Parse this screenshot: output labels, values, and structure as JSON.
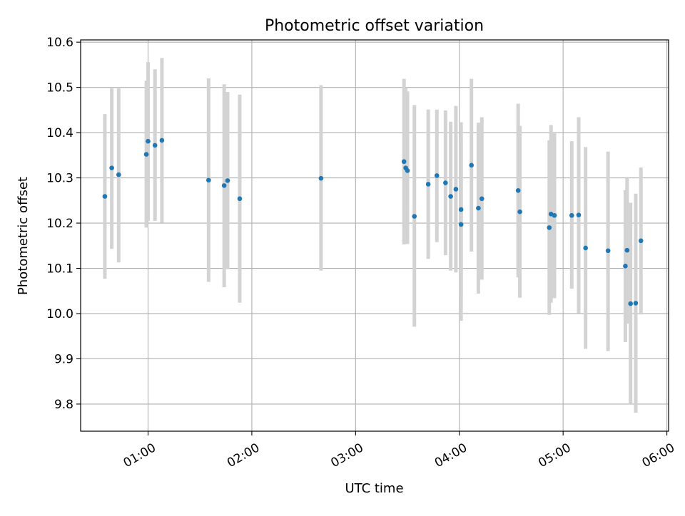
{
  "chart_data": {
    "type": "scatter",
    "title": "Photometric offset variation",
    "xlabel": "UTC time",
    "ylabel": "Photometric offset",
    "x_axis_type": "time",
    "xlim": [
      "00:21",
      "06:01"
    ],
    "ylim": [
      9.74,
      10.605
    ],
    "grid": true,
    "x_ticks": [
      "01:00",
      "02:00",
      "03:00",
      "04:00",
      "05:00",
      "06:00"
    ],
    "y_ticks": [
      9.8,
      9.9,
      10.0,
      10.1,
      10.2,
      10.3,
      10.4,
      10.5,
      10.6
    ],
    "y_tick_labels": [
      "9.8",
      "9.9",
      "10.0",
      "10.1",
      "10.2",
      "10.3",
      "10.4",
      "10.5",
      "10.6"
    ],
    "point_color": "#1f77b4",
    "errorbar_color": "#d3d3d3",
    "points": [
      {
        "x": "00:35",
        "y": 10.259,
        "ylow": 10.077,
        "yhigh": 10.441
      },
      {
        "x": "00:39",
        "y": 10.322,
        "ylow": 10.143,
        "yhigh": 10.498
      },
      {
        "x": "00:43",
        "y": 10.307,
        "ylow": 10.113,
        "yhigh": 10.498
      },
      {
        "x": "00:59",
        "y": 10.352,
        "ylow": 10.19,
        "yhigh": 10.515
      },
      {
        "x": "01:00",
        "y": 10.381,
        "ylow": 10.205,
        "yhigh": 10.556
      },
      {
        "x": "01:04",
        "y": 10.372,
        "ylow": 10.205,
        "yhigh": 10.54
      },
      {
        "x": "01:08",
        "y": 10.383,
        "ylow": 10.201,
        "yhigh": 10.565
      },
      {
        "x": "01:35",
        "y": 10.295,
        "ylow": 10.07,
        "yhigh": 10.52
      },
      {
        "x": "01:44",
        "y": 10.283,
        "ylow": 10.058,
        "yhigh": 10.507
      },
      {
        "x": "01:46",
        "y": 10.294,
        "ylow": 10.098,
        "yhigh": 10.49
      },
      {
        "x": "01:53",
        "y": 10.254,
        "ylow": 10.024,
        "yhigh": 10.484
      },
      {
        "x": "02:40",
        "y": 10.299,
        "ylow": 10.095,
        "yhigh": 10.505
      },
      {
        "x": "03:28",
        "y": 10.336,
        "ylow": 10.153,
        "yhigh": 10.519
      },
      {
        "x": "03:29",
        "y": 10.322,
        "ylow": 10.154,
        "yhigh": 10.499
      },
      {
        "x": "03:30",
        "y": 10.316,
        "ylow": 10.154,
        "yhigh": 10.491
      },
      {
        "x": "03:34",
        "y": 10.215,
        "ylow": 9.971,
        "yhigh": 10.461
      },
      {
        "x": "03:42",
        "y": 10.286,
        "ylow": 10.121,
        "yhigh": 10.451
      },
      {
        "x": "03:47",
        "y": 10.305,
        "ylow": 10.158,
        "yhigh": 10.451
      },
      {
        "x": "03:52",
        "y": 10.289,
        "ylow": 10.129,
        "yhigh": 10.449
      },
      {
        "x": "03:55",
        "y": 10.259,
        "ylow": 10.095,
        "yhigh": 10.424
      },
      {
        "x": "03:58",
        "y": 10.275,
        "ylow": 10.091,
        "yhigh": 10.459
      },
      {
        "x": "04:01",
        "y": 10.197,
        "ylow": 9.984,
        "yhigh": 10.423
      },
      {
        "x": "04:01",
        "y": 10.23,
        "ylow": 10.038,
        "yhigh": 10.381
      },
      {
        "x": "04:07",
        "y": 10.328,
        "ylow": 10.137,
        "yhigh": 10.519
      },
      {
        "x": "04:11",
        "y": 10.233,
        "ylow": 10.044,
        "yhigh": 10.422
      },
      {
        "x": "04:13",
        "y": 10.254,
        "ylow": 10.075,
        "yhigh": 10.434
      },
      {
        "x": "04:34",
        "y": 10.272,
        "ylow": 10.08,
        "yhigh": 10.464
      },
      {
        "x": "04:35",
        "y": 10.225,
        "ylow": 10.035,
        "yhigh": 10.415
      },
      {
        "x": "04:52",
        "y": 10.19,
        "ylow": 9.997,
        "yhigh": 10.383
      },
      {
        "x": "04:53",
        "y": 10.22,
        "ylow": 10.024,
        "yhigh": 10.417
      },
      {
        "x": "04:55",
        "y": 10.217,
        "ylow": 10.034,
        "yhigh": 10.4
      },
      {
        "x": "05:05",
        "y": 10.217,
        "ylow": 10.055,
        "yhigh": 10.381
      },
      {
        "x": "05:09",
        "y": 10.218,
        "ylow": 10.001,
        "yhigh": 10.434
      },
      {
        "x": "05:13",
        "y": 10.145,
        "ylow": 9.922,
        "yhigh": 10.368
      },
      {
        "x": "05:26",
        "y": 10.139,
        "ylow": 9.917,
        "yhigh": 10.358
      },
      {
        "x": "05:36",
        "y": 10.105,
        "ylow": 9.937,
        "yhigh": 10.273
      },
      {
        "x": "05:37",
        "y": 10.14,
        "ylow": 9.978,
        "yhigh": 10.302
      },
      {
        "x": "05:39",
        "y": 10.022,
        "ylow": 9.8,
        "yhigh": 10.245
      },
      {
        "x": "05:42",
        "y": 10.023,
        "ylow": 9.781,
        "yhigh": 10.265
      },
      {
        "x": "05:45",
        "y": 10.161,
        "ylow": 9.998,
        "yhigh": 10.323
      }
    ]
  }
}
